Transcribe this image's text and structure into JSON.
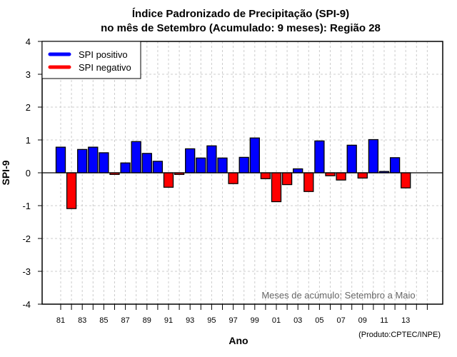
{
  "chart_data": {
    "type": "bar",
    "title": [
      "Índice Padronizado de Precipitação (SPI-9)",
      "no mês de Setembro (Acumulado: 9 meses): Região 28"
    ],
    "xlabel": "Ano",
    "ylabel": "SPI-9",
    "ylim": [
      -4,
      4
    ],
    "yticks": [
      4,
      3,
      2,
      1,
      0,
      -1,
      -2,
      -3,
      -4
    ],
    "grid": true,
    "years": [
      "1981",
      "1982",
      "1983",
      "1984",
      "1985",
      "1986",
      "1987",
      "1988",
      "1989",
      "1990",
      "1991",
      "1992",
      "1993",
      "1994",
      "1995",
      "1996",
      "1997",
      "1998",
      "1999",
      "2000",
      "2001",
      "2002",
      "2003",
      "2004",
      "2005",
      "2006",
      "2007",
      "2008",
      "2009",
      "2010",
      "2011",
      "2012",
      "2013"
    ],
    "xtick_labels": [
      "81",
      "83",
      "85",
      "87",
      "89",
      "91",
      "93",
      "95",
      "97",
      "99",
      "01",
      "03",
      "05",
      "07",
      "09",
      "11",
      "13"
    ],
    "values": [
      0.78,
      -1.09,
      0.71,
      0.78,
      0.61,
      -0.05,
      0.3,
      0.95,
      0.59,
      0.35,
      -0.44,
      -0.05,
      0.73,
      0.45,
      0.82,
      0.45,
      -0.33,
      0.47,
      1.06,
      -0.18,
      -0.88,
      -0.36,
      0.12,
      -0.57,
      0.97,
      -0.09,
      -0.22,
      0.84,
      -0.16,
      1.01,
      0.04,
      0.46,
      -0.46
    ],
    "legend": {
      "position": "top-left",
      "entries": [
        {
          "label": "SPI positivo",
          "color": "#0000ff"
        },
        {
          "label": "SPI negativo",
          "color": "#ff0000"
        }
      ]
    },
    "annotation": "Meses de acúmulo: Setembro a Maio",
    "credit": "(Produto:CPTEC/INPE)",
    "colors": {
      "positive": "#0000ff",
      "negative": "#ff0000",
      "grid": "#cccccc"
    }
  }
}
